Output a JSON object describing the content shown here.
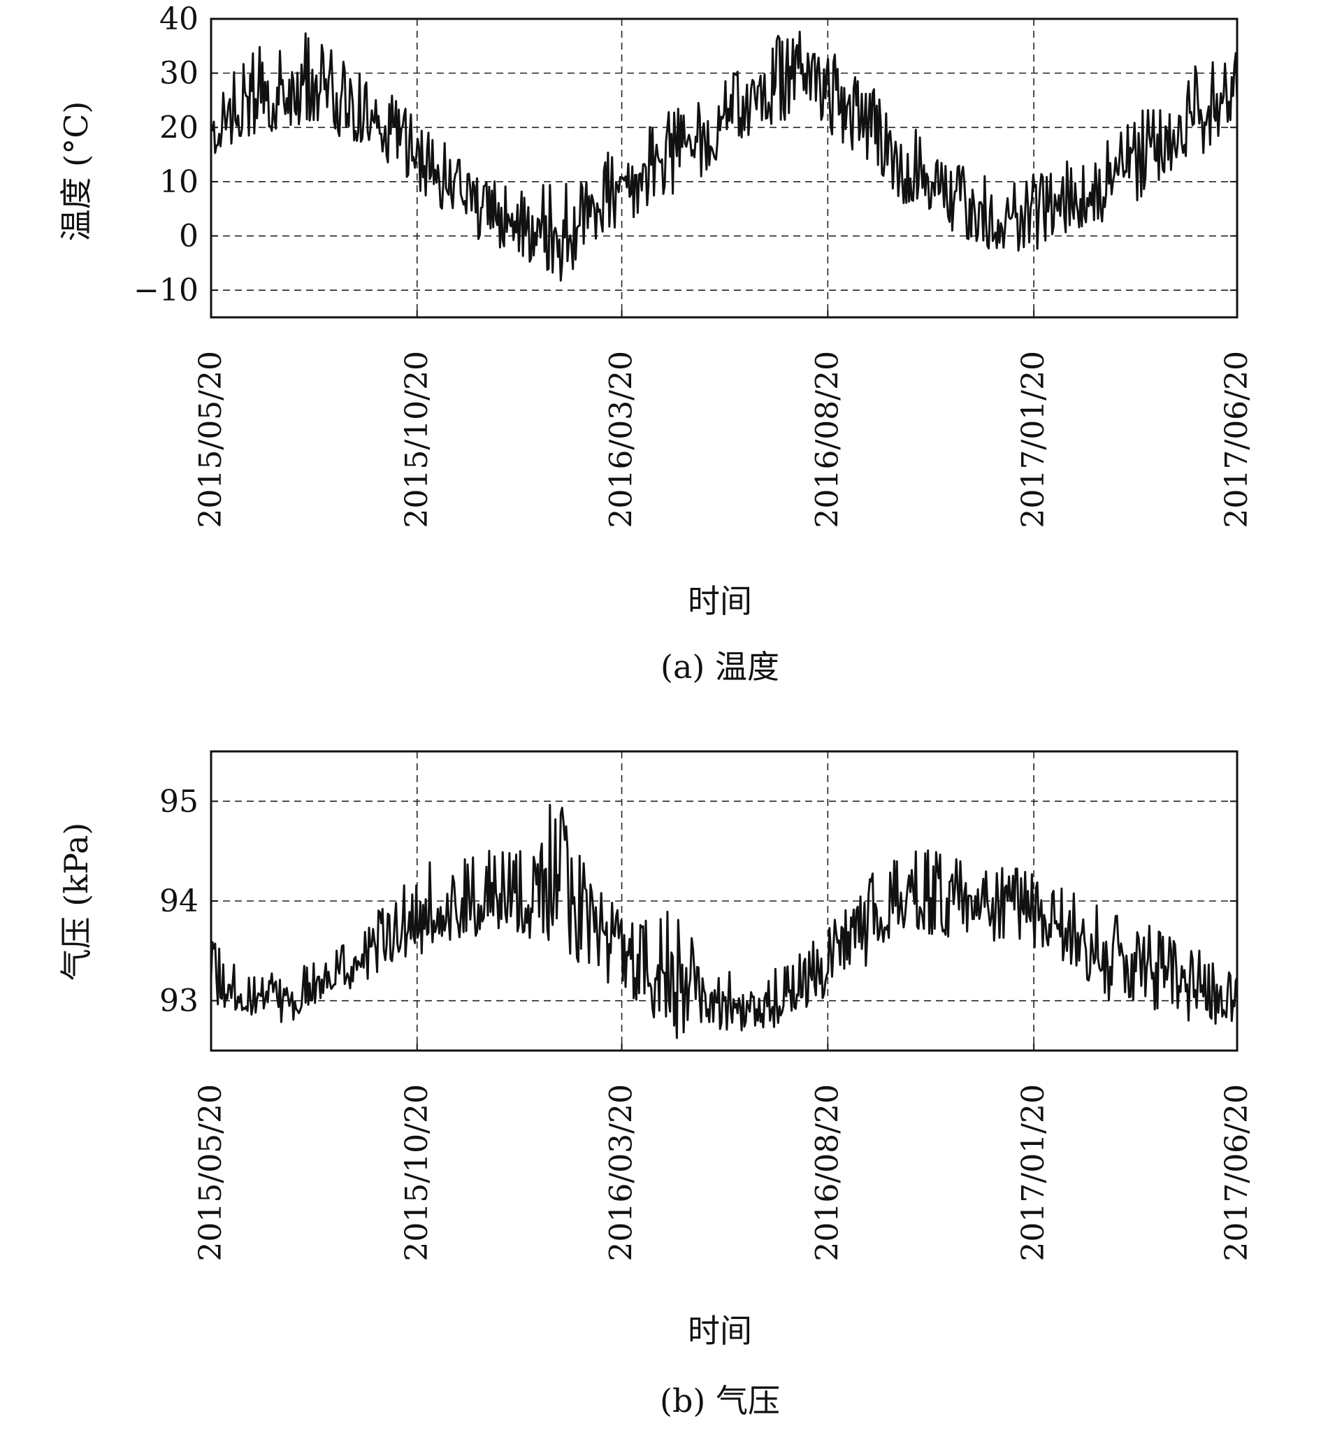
{
  "chart_data": [
    {
      "type": "line",
      "caption": "(a) 温度",
      "xlabel": "时间",
      "ylabel": "温度 (°C)",
      "xlim": [
        "2015/05/20",
        "2017/06/20"
      ],
      "ylim": [
        -15,
        40
      ],
      "x_ticks": [
        "2015/05/20",
        "2015/10/20",
        "2016/03/20",
        "2016/08/20",
        "2017/01/20",
        "2017/06/20"
      ],
      "y_ticks": [
        -10,
        0,
        10,
        20,
        30,
        40
      ],
      "y_tick_labels": [
        "−10",
        "0",
        "10",
        "20",
        "30",
        "40"
      ],
      "grid": true,
      "line_color": "#111111",
      "series": [
        {
          "x": [
            "2015/05/20",
            "2015/06/01",
            "2015/06/15",
            "2015/07/01",
            "2015/07/15",
            "2015/08/01",
            "2015/08/15",
            "2015/09/01",
            "2015/09/15",
            "2015/10/01",
            "2015/10/15",
            "2015/11/01",
            "2015/11/15",
            "2015/12/01",
            "2015/12/15",
            "2016/01/01",
            "2016/01/15",
            "2016/02/01",
            "2016/02/15",
            "2016/03/01",
            "2016/03/15",
            "2016/04/01",
            "2016/04/15",
            "2016/05/01",
            "2016/05/15",
            "2016/06/01",
            "2016/06/15",
            "2016/07/01",
            "2016/07/15",
            "2016/08/01",
            "2016/08/15",
            "2016/09/01",
            "2016/09/15",
            "2016/10/01",
            "2016/10/15",
            "2016/11/01",
            "2016/11/15",
            "2016/12/01",
            "2016/12/15",
            "2017/01/01",
            "2017/01/15",
            "2017/02/01",
            "2017/02/15",
            "2017/03/01",
            "2017/03/15",
            "2017/04/01",
            "2017/04/15",
            "2017/05/01",
            "2017/05/15",
            "2017/06/01",
            "2017/06/20"
          ],
          "y": [
            20,
            22,
            24,
            25,
            27,
            28,
            26,
            24,
            21,
            19,
            16,
            12,
            10,
            7,
            4,
            2,
            1,
            0,
            2,
            5,
            8,
            11,
            14,
            16,
            18,
            21,
            24,
            27,
            28,
            29,
            28,
            25,
            21,
            17,
            13,
            10,
            7,
            4,
            3,
            2,
            3,
            4,
            6,
            8,
            10,
            13,
            16,
            19,
            22,
            24,
            26
          ],
          "min": [
            15,
            16,
            18,
            19,
            20,
            21,
            19,
            17,
            15,
            13,
            8,
            6,
            3,
            0,
            -3,
            -4,
            -6,
            -9,
            -6,
            -2,
            1,
            4,
            7,
            8,
            10,
            13,
            16,
            19,
            20,
            22,
            20,
            17,
            14,
            10,
            6,
            3,
            0,
            -2,
            -3,
            -4,
            -4,
            -3,
            -1,
            1,
            3,
            5,
            8,
            11,
            14,
            16,
            19
          ],
          "max": [
            28,
            30,
            33,
            36,
            38,
            39,
            35,
            32,
            29,
            26,
            23,
            19,
            16,
            13,
            11,
            9,
            8,
            12,
            11,
            14,
            17,
            20,
            22,
            24,
            27,
            30,
            33,
            36,
            37,
            38,
            36,
            32,
            29,
            26,
            22,
            18,
            15,
            13,
            11,
            10,
            11,
            12,
            14,
            16,
            18,
            21,
            24,
            28,
            32,
            34,
            35
          ]
        }
      ]
    },
    {
      "type": "line",
      "caption": "(b) 气压",
      "xlabel": "时间",
      "ylabel": "气压 (kPa)",
      "xlim": [
        "2015/05/20",
        "2017/06/20"
      ],
      "ylim": [
        92.5,
        95.5
      ],
      "x_ticks": [
        "2015/05/20",
        "2015/10/20",
        "2016/03/20",
        "2016/08/20",
        "2017/01/20",
        "2017/06/20"
      ],
      "y_ticks": [
        93,
        94,
        95
      ],
      "y_tick_labels": [
        "93",
        "94",
        "95"
      ],
      "grid": true,
      "line_color": "#111111",
      "series": [
        {
          "x": [
            "2015/05/20",
            "2015/06/01",
            "2015/06/15",
            "2015/07/01",
            "2015/07/15",
            "2015/08/01",
            "2015/08/15",
            "2015/09/01",
            "2015/09/15",
            "2015/10/01",
            "2015/10/15",
            "2015/11/01",
            "2015/11/15",
            "2015/12/01",
            "2015/12/15",
            "2016/01/01",
            "2016/01/15",
            "2016/02/01",
            "2016/02/15",
            "2016/03/01",
            "2016/03/15",
            "2016/04/01",
            "2016/04/15",
            "2016/05/01",
            "2016/05/15",
            "2016/06/01",
            "2016/06/15",
            "2016/07/01",
            "2016/07/15",
            "2016/08/01",
            "2016/08/15",
            "2016/09/01",
            "2016/09/15",
            "2016/10/01",
            "2016/10/15",
            "2016/11/01",
            "2016/11/15",
            "2016/12/01",
            "2016/12/15",
            "2017/01/01",
            "2017/01/15",
            "2017/02/01",
            "2017/02/15",
            "2017/03/01",
            "2017/03/15",
            "2017/04/01",
            "2017/04/15",
            "2017/05/01",
            "2017/05/15",
            "2017/06/01",
            "2017/06/20"
          ],
          "y": [
            93.2,
            93.1,
            93.0,
            93.0,
            92.95,
            93.1,
            93.2,
            93.3,
            93.45,
            93.6,
            93.75,
            93.85,
            93.9,
            93.95,
            94.0,
            94.05,
            94.0,
            94.1,
            94.0,
            93.8,
            93.55,
            93.4,
            93.3,
            93.2,
            93.1,
            93.0,
            92.95,
            92.95,
            93.0,
            93.05,
            93.3,
            93.5,
            93.7,
            93.85,
            94.0,
            94.05,
            94.05,
            94.0,
            93.95,
            94.0,
            93.95,
            93.9,
            93.75,
            93.6,
            93.45,
            93.35,
            93.3,
            93.25,
            93.2,
            93.1,
            93.05
          ],
          "min": [
            93.0,
            92.9,
            92.85,
            92.8,
            92.75,
            92.9,
            93.0,
            93.1,
            93.2,
            93.35,
            93.45,
            93.5,
            93.6,
            93.6,
            93.65,
            93.7,
            93.6,
            93.5,
            93.4,
            93.2,
            93.0,
            92.9,
            92.8,
            92.6,
            92.8,
            92.7,
            92.65,
            92.7,
            92.75,
            92.85,
            93.0,
            93.2,
            93.3,
            93.5,
            93.6,
            93.65,
            93.65,
            93.6,
            93.6,
            93.6,
            93.55,
            93.5,
            93.35,
            93.2,
            93.0,
            92.95,
            92.9,
            92.85,
            92.8,
            92.75,
            92.8
          ],
          "max": [
            93.6,
            93.5,
            93.3,
            93.3,
            93.2,
            93.4,
            93.5,
            93.6,
            93.8,
            94.1,
            94.3,
            94.5,
            94.4,
            94.6,
            94.5,
            94.5,
            94.5,
            95.2,
            94.55,
            94.3,
            94.0,
            93.9,
            93.8,
            94.0,
            93.5,
            93.4,
            93.3,
            93.3,
            93.35,
            93.5,
            93.7,
            93.9,
            94.1,
            94.5,
            94.4,
            94.6,
            94.45,
            94.4,
            94.3,
            94.35,
            94.3,
            94.2,
            94.2,
            94.0,
            93.95,
            93.8,
            93.8,
            93.7,
            93.6,
            93.4,
            93.3
          ]
        }
      ]
    }
  ]
}
